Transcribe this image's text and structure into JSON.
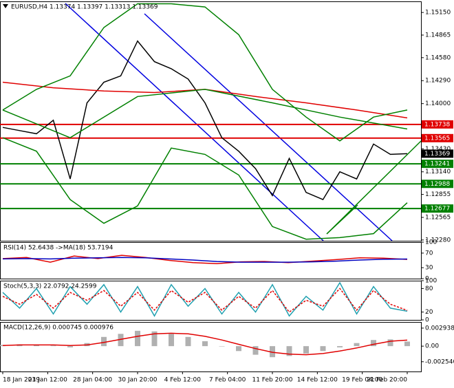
{
  "chart_data": [
    {
      "type": "line",
      "title": "EURUSD,H4  1.13374 1.13397 1.13313 1.13369",
      "ylim": [
        1.1227,
        1.1529
      ],
      "yticks": [
        {
          "value": 1.1515,
          "label": "1.15150"
        },
        {
          "value": 1.14865,
          "label": "1.14865"
        },
        {
          "value": 1.1458,
          "label": "1.14580"
        },
        {
          "value": 1.1429,
          "label": "1.14290"
        },
        {
          "value": 1.14,
          "label": "1.14000"
        },
        {
          "value": 1.1343,
          "label": "1.13430"
        },
        {
          "value": 1.1314,
          "label": "1.13140"
        },
        {
          "value": 1.12855,
          "label": "1.12855"
        },
        {
          "value": 1.12565,
          "label": "1.12565"
        },
        {
          "value": 1.1228,
          "label": "1.12280"
        }
      ],
      "levels": [
        {
          "value": 1.13738,
          "label": "1.13738",
          "color": "#e00000"
        },
        {
          "value": 1.13565,
          "label": "1.13565",
          "color": "#e00000"
        },
        {
          "value": 1.13241,
          "label": "1.13241",
          "color": "#008000"
        },
        {
          "value": 1.12988,
          "label": "1.12988",
          "color": "#008000"
        },
        {
          "value": 1.12677,
          "label": "1.12677",
          "color": "#008000"
        }
      ],
      "last": {
        "value": 1.13369,
        "label": "1.13369",
        "color": "#000000"
      },
      "series": [
        {
          "name": "Close",
          "color": "#000000",
          "style": "line",
          "values": [
            1.137,
            1.1366,
            1.1362,
            1.1379,
            1.1305,
            1.1401,
            1.1427,
            1.1435,
            1.1479,
            1.1453,
            1.1444,
            1.1431,
            1.1401,
            1.1357,
            1.134,
            1.1318,
            1.1284,
            1.1331,
            1.1288,
            1.1279,
            1.1314,
            1.1305,
            1.1349,
            1.1336,
            1.13369
          ]
        },
        {
          "name": "MA slow",
          "color": "#e00000",
          "style": "line",
          "values": [
            1.1427,
            1.142,
            1.1416,
            1.1414,
            1.1418,
            1.1409,
            1.1401,
            1.1392,
            1.1382
          ]
        },
        {
          "name": "MA mid",
          "color": "#008000",
          "style": "line",
          "values": [
            1.1392,
            1.1357,
            1.1409,
            1.1418,
            1.1401,
            1.1383,
            1.1368
          ]
        },
        {
          "name": "Band upper",
          "color": "#008000",
          "style": "line",
          "values": [
            1.1392,
            1.1418,
            1.1435,
            1.1496,
            1.1526,
            1.1526,
            1.1522,
            1.1487,
            1.1418,
            1.1383,
            1.1353,
            1.1383,
            1.1392
          ]
        },
        {
          "name": "Band lower",
          "color": "#008000",
          "style": "line",
          "values": [
            1.1357,
            1.134,
            1.1279,
            1.1249,
            1.1271,
            1.1344,
            1.1336,
            1.131,
            1.1245,
            1.1229,
            1.1231,
            1.1236,
            1.1275
          ]
        }
      ]
    },
    {
      "type": "line",
      "title": "RSI(14) 52.6438  ->MA(18) 53.7194",
      "ylim": [
        0,
        100
      ],
      "yticks": [
        100,
        70,
        30,
        0
      ],
      "series": [
        {
          "name": "RSI",
          "color": "#e00000",
          "style": "line",
          "values": [
            55,
            58,
            45,
            62,
            55,
            64,
            58,
            50,
            44,
            41,
            46,
            47,
            44,
            48,
            52,
            57,
            56,
            52.6438
          ]
        },
        {
          "name": "MA",
          "color": "#0000c0",
          "style": "line",
          "values": [
            54,
            55,
            54,
            56,
            57,
            58,
            57,
            54,
            51,
            47,
            45,
            45,
            45,
            46,
            48,
            51,
            53,
            53.7194
          ]
        }
      ]
    },
    {
      "type": "line",
      "title": "Stoch(5,3,3) 22.0792 24.2599",
      "ylim": [
        0,
        100
      ],
      "yticks": [
        100,
        80,
        20,
        0
      ],
      "series": [
        {
          "name": "Main",
          "color": "#20a0b0",
          "style": "line",
          "values": [
            70,
            30,
            80,
            15,
            85,
            40,
            90,
            20,
            85,
            10,
            90,
            35,
            80,
            15,
            70,
            20,
            90,
            10,
            60,
            25,
            95,
            15,
            85,
            30,
            22.0792
          ]
        },
        {
          "name": "Signal",
          "color": "#e00000",
          "style": "dashed",
          "values": [
            60,
            40,
            65,
            30,
            70,
            50,
            75,
            35,
            70,
            25,
            75,
            45,
            70,
            25,
            60,
            30,
            75,
            20,
            50,
            35,
            80,
            25,
            75,
            40,
            24.2599
          ]
        }
      ]
    },
    {
      "type": "bar",
      "title": "MACD(12,26,9) 0.000745 0.000976",
      "ylim": [
        -0.00413,
        0.00394
      ],
      "yticks": [
        0.002938,
        {
          "value": 0,
          "label": "0.00"
        },
        {
          "value": -0.00254,
          "label": "-0.002540"
        }
      ],
      "x_labels": [
        "18 Jan 2019",
        "23 Jan 12:00",
        "28 Jan 04:00",
        "30 Jan 20:00",
        "4 Feb 12:00",
        "7 Feb 04:00",
        "11 Feb 20:00",
        "14 Feb 12:00",
        "19 Feb 04:00",
        "21 Feb 20:00"
      ],
      "series": [
        {
          "name": "MACD",
          "color": "#b0b0b0",
          "style": "bar",
          "values": [
            0.0002,
            0.0003,
            0.0002,
            0.0001,
            -0.0002,
            0.0005,
            0.0015,
            0.002,
            0.0025,
            0.0024,
            0.002,
            0.0015,
            0.0008,
            0,
            -0.0008,
            -0.0014,
            -0.0018,
            -0.0016,
            -0.0012,
            -0.0008,
            -0.0002,
            0.0005,
            0.001,
            0.0011,
            0.000745
          ]
        },
        {
          "name": "Signal",
          "color": "#e00000",
          "style": "line",
          "values": [
            0.0001,
            0.0002,
            0.0002,
            0.0002,
            0.0001,
            0.0002,
            0.0006,
            0.0011,
            0.0016,
            0.002,
            0.0021,
            0.002,
            0.0016,
            0.001,
            0.0003,
            -0.0004,
            -0.001,
            -0.0013,
            -0.0014,
            -0.0012,
            -0.0008,
            -0.0003,
            0.0003,
            0.0008,
            0.000976
          ]
        }
      ]
    }
  ]
}
